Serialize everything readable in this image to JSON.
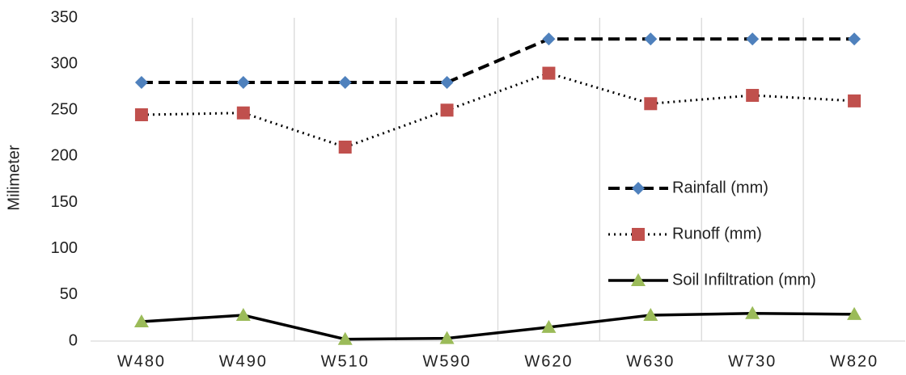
{
  "chart_data": {
    "type": "line",
    "y_label": "Milimeter",
    "categories": [
      "W480",
      "W490",
      "W510",
      "W590",
      "W620",
      "W630",
      "W730",
      "W820"
    ],
    "series": [
      {
        "name": "Rainfall (mm)",
        "color": "#4f81bd",
        "line_color": "#000000",
        "dash": "dashed",
        "marker": "diamond",
        "values": [
          280,
          280,
          280,
          280,
          327,
          327,
          327,
          327
        ]
      },
      {
        "name": "Runoff (mm)",
        "color": "#c0504d",
        "line_color": "#000000",
        "dash": "dotted",
        "marker": "square",
        "values": [
          245,
          247,
          210,
          250,
          290,
          257,
          266,
          260
        ]
      },
      {
        "name": "Soil Infiltration (mm)",
        "color": "#9bbb59",
        "line_color": "#000000",
        "dash": "solid",
        "marker": "triangle",
        "values": [
          21,
          28,
          2,
          3,
          15,
          28,
          30,
          29
        ]
      }
    ],
    "ylim": [
      0,
      350
    ],
    "yticks": [
      0,
      50,
      100,
      150,
      200,
      250,
      300,
      350
    ],
    "grid": "vertical",
    "legend": "right"
  }
}
